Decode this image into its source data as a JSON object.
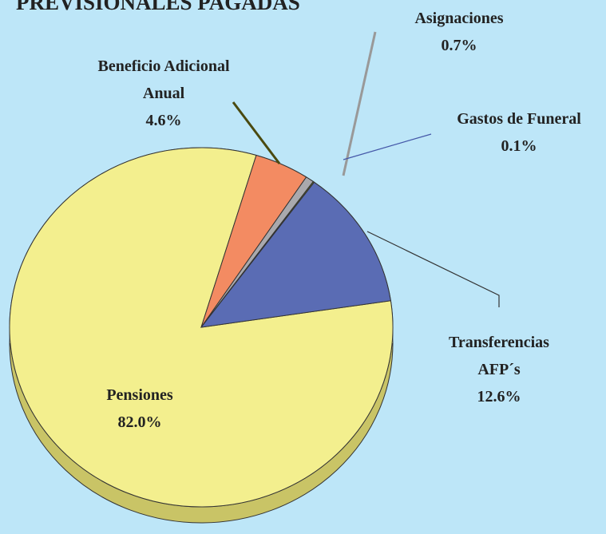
{
  "chart_data": {
    "type": "pie",
    "title": "PREVISIONALES PAGADAS",
    "categories": [
      "Pensiones",
      "Beneficio Adicional Anual",
      "Asignaciones",
      "Gastos de Funeral",
      "Transferencias AFP´s"
    ],
    "values": [
      82.0,
      4.6,
      0.7,
      0.1,
      12.6
    ],
    "value_labels": [
      "82.0%",
      "4.6%",
      "0.7%",
      "0.1%",
      "12.6%"
    ],
    "colors": [
      "#f3ef8e",
      "#f38b62",
      "#a9a9ad",
      "#6f7a22",
      "#5a6cb4"
    ]
  }
}
